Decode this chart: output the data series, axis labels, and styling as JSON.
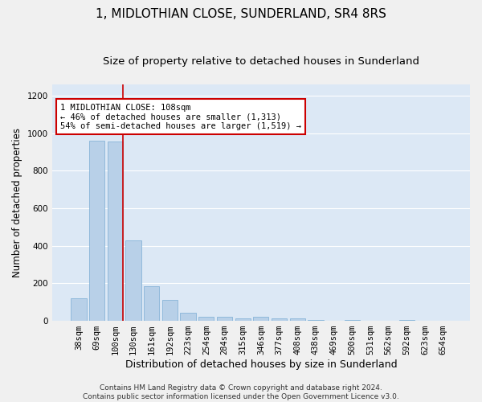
{
  "title": "1, MIDLOTHIAN CLOSE, SUNDERLAND, SR4 8RS",
  "subtitle": "Size of property relative to detached houses in Sunderland",
  "xlabel": "Distribution of detached houses by size in Sunderland",
  "ylabel": "Number of detached properties",
  "categories": [
    "38sqm",
    "69sqm",
    "100sqm",
    "130sqm",
    "161sqm",
    "192sqm",
    "223sqm",
    "254sqm",
    "284sqm",
    "315sqm",
    "346sqm",
    "377sqm",
    "408sqm",
    "438sqm",
    "469sqm",
    "500sqm",
    "531sqm",
    "562sqm",
    "592sqm",
    "623sqm",
    "654sqm"
  ],
  "values": [
    120,
    960,
    955,
    430,
    185,
    110,
    45,
    20,
    20,
    15,
    20,
    15,
    15,
    5,
    0,
    5,
    0,
    0,
    5,
    0,
    0
  ],
  "bar_color": "#b8d0e8",
  "bar_edge_color": "#7aadd4",
  "background_color": "#dce8f5",
  "grid_color": "#ffffff",
  "vline_color": "#cc0000",
  "annotation_text": "1 MIDLOTHIAN CLOSE: 108sqm\n← 46% of detached houses are smaller (1,313)\n54% of semi-detached houses are larger (1,519) →",
  "annotation_box_color": "#ffffff",
  "annotation_box_edge": "#cc0000",
  "footnote": "Contains HM Land Registry data © Crown copyright and database right 2024.\nContains public sector information licensed under the Open Government Licence v3.0.",
  "ylim": [
    0,
    1260
  ],
  "yticks": [
    0,
    200,
    400,
    600,
    800,
    1000,
    1200
  ],
  "title_fontsize": 11,
  "subtitle_fontsize": 9.5,
  "xlabel_fontsize": 9,
  "ylabel_fontsize": 8.5,
  "tick_fontsize": 7.5,
  "annotation_fontsize": 7.5,
  "footnote_fontsize": 6.5
}
